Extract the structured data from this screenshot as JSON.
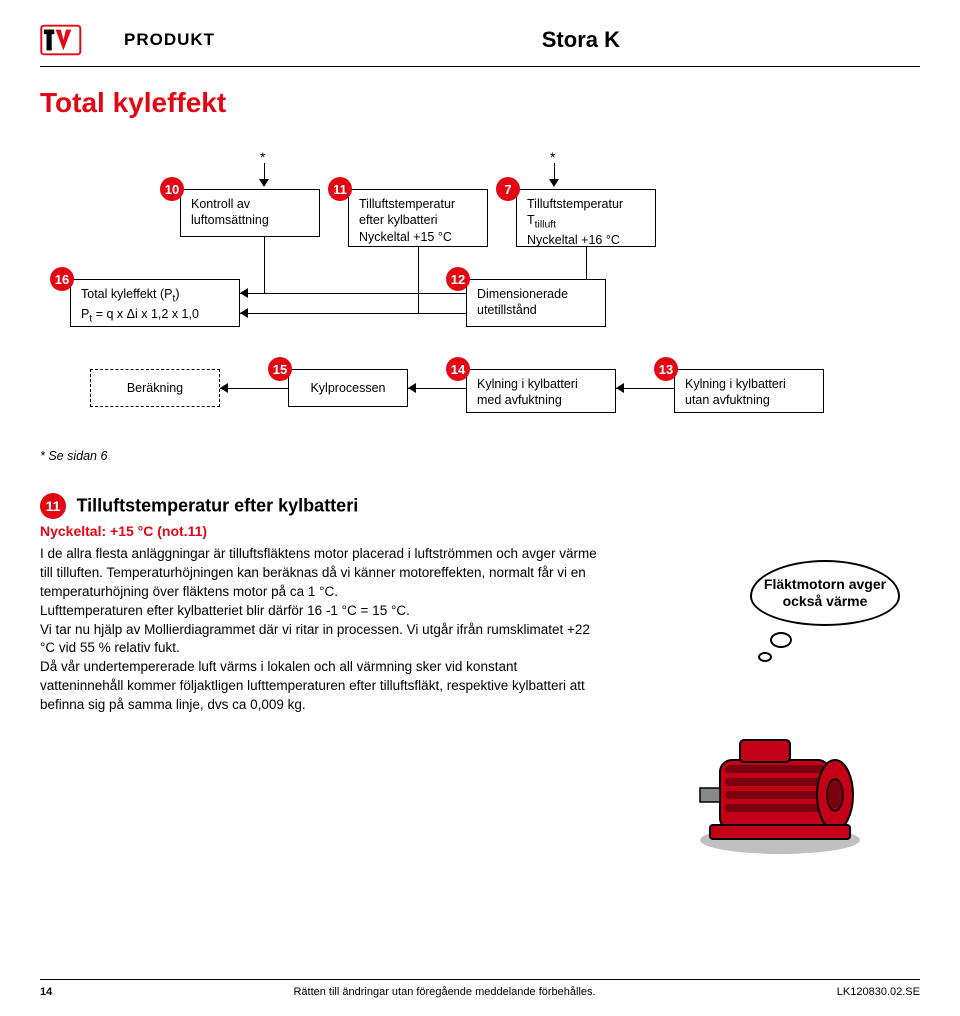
{
  "header": {
    "logo_text": "PRODUKT",
    "title": "Stora K"
  },
  "page_title": "Total kyleffekt",
  "flowchart": {
    "colors": {
      "badge_bg": "#e30613",
      "badge_fg": "#ffffff",
      "border": "#000000"
    },
    "nodes": {
      "n10": {
        "badge": "10",
        "line1": "Kontroll av",
        "line2": "luftomsättning"
      },
      "n11": {
        "badge": "11",
        "line1": "Tilluftstemperatur",
        "line2": "efter kylbatteri",
        "line3": "Nyckeltal +15 °C"
      },
      "n7": {
        "badge": "7",
        "line1": "Tilluftstemperatur",
        "line2": "T",
        "sub": "tilluft",
        "line3": "Nyckeltal +16 °C"
      },
      "n16": {
        "badge": "16",
        "line1": "Total kyleffekt (P",
        "sub1": "t",
        "line1b": ")",
        "line2a": "P",
        "sub2": "t",
        "line2b": " = q x Δi x 1,2 x 1,0"
      },
      "n12": {
        "badge": "12",
        "line1": "Dimensionerade",
        "line2": "utetillstånd"
      },
      "calc": {
        "label": "Beräkning"
      },
      "n15": {
        "badge": "15",
        "label": "Kylprocessen"
      },
      "n14": {
        "badge": "14",
        "line1": "Kylning i kylbatteri",
        "line2": "med avfuktning"
      },
      "n13": {
        "badge": "13",
        "line1": "Kylning i kylbatteri",
        "line2": "utan avfuktning"
      }
    },
    "star": "*"
  },
  "footnote": "* Se sidan 6",
  "section": {
    "badge": "11",
    "title": "Tilluftstemperatur efter kylbatteri",
    "subtitle": "Nyckeltal: +15 °C (not.11)",
    "body": "I de allra flesta anläggningar är tilluftsfläktens motor placerad i luftströmmen och avger värme till tilluften. Temperaturhöjningen kan beräknas då vi känner motoreffekten, normalt får vi en temperaturhöjning över fläktens motor på ca 1 °C.\nLufttemperaturen efter kylbatteriet blir därför 16 -1 °C = 15 °C.\nVi tar nu hjälp av Mollierdiagrammet där vi ritar in processen. Vi utgår ifrån rumsklimatet +22 °C vid 55 % relativ fukt.\nDå vår undertempererade luft värms i lokalen och all värmning sker vid konstant vatteninnehåll kommer följaktligen lufttemperaturen efter tilluftsfläkt, respektive kylbatteri att befinna sig på samma linje, dvs ca 0,009 kg."
  },
  "illustration": {
    "bubble_text": "Fläktmotorn avger också värme",
    "motor_color": "#c40018",
    "motor_dark": "#7a0010"
  },
  "footer": {
    "page": "14",
    "center": "Rätten till ändringar utan föregående meddelande förbehålles.",
    "code": "LK120830.02.SE"
  }
}
